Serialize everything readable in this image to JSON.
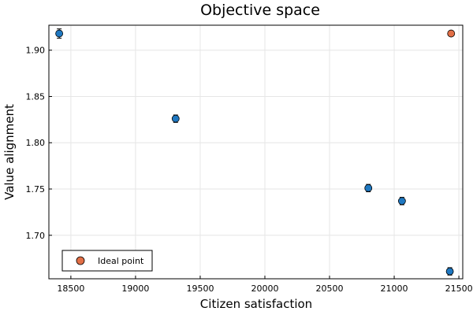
{
  "chart_data": {
    "type": "scatter",
    "title": "Objective space",
    "xlabel": "Citizen satisfaction",
    "ylabel": "Value alignment",
    "xlim": [
      18330,
      21530
    ],
    "ylim": [
      1.653,
      1.927
    ],
    "xticks": [
      18500,
      19000,
      19500,
      20000,
      20500,
      21000,
      21500
    ],
    "yticks": [
      1.7,
      1.75,
      1.8,
      1.85,
      1.9
    ],
    "grid": true,
    "legend_position": "bottom-left",
    "series": [
      {
        "color": "#1f78c1",
        "marker": "circle-with-error-bars",
        "points": [
          {
            "x": 18410,
            "y": 1.918,
            "yerr": 0.005
          },
          {
            "x": 19310,
            "y": 1.826,
            "yerr": 0.004
          },
          {
            "x": 20800,
            "y": 1.751,
            "yerr": 0.004
          },
          {
            "x": 21060,
            "y": 1.737,
            "yerr": 0.004
          },
          {
            "x": 21430,
            "y": 1.661,
            "yerr": 0.004
          }
        ]
      },
      {
        "name": "Ideal point",
        "color": "#e26f46",
        "marker": "circle",
        "points": [
          {
            "x": 21440,
            "y": 1.918
          }
        ]
      }
    ]
  }
}
